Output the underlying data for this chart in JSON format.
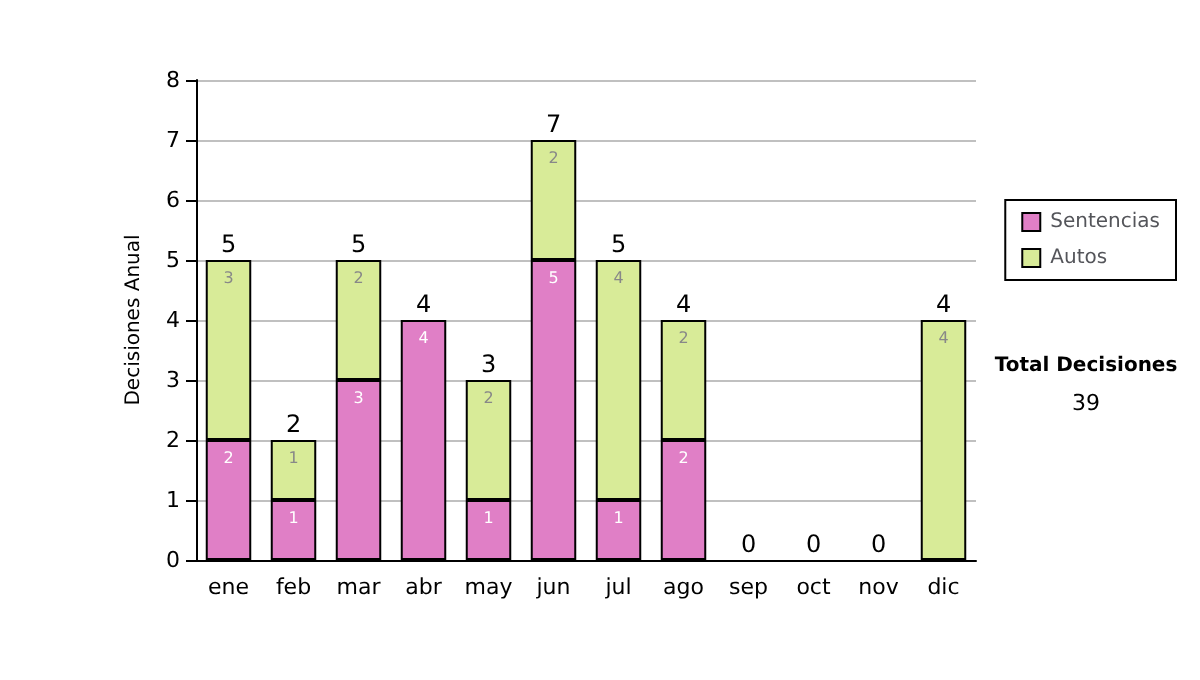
{
  "chart_data": {
    "type": "bar",
    "ylabel": "Decisiones Anual",
    "categories": [
      "ene",
      "feb",
      "mar",
      "abr",
      "may",
      "jun",
      "jul",
      "ago",
      "sep",
      "oct",
      "nov",
      "dic"
    ],
    "stacked": true,
    "series": [
      {
        "name": "Sentencias",
        "color": "#e07fc6",
        "values": [
          2,
          1,
          3,
          4,
          1,
          5,
          1,
          2,
          0,
          0,
          0,
          0
        ],
        "value_labels": [
          "2",
          "1",
          "3",
          "4",
          "1",
          "5",
          "1",
          "2",
          null,
          null,
          null,
          null
        ]
      },
      {
        "name": "Autos",
        "color": "#d8eb98",
        "values": [
          3,
          1,
          2,
          0,
          2,
          2,
          4,
          2,
          0,
          0,
          0,
          4
        ],
        "value_labels": [
          "3",
          "1",
          "2",
          null,
          "2",
          "2",
          "4",
          "2",
          null,
          null,
          null,
          "4"
        ]
      }
    ],
    "totals": [
      "5",
      "2",
      "5",
      "4",
      "3",
      "7",
      "5",
      "4",
      "0",
      "0",
      "0",
      "4"
    ],
    "ylim": [
      0,
      8
    ],
    "yticks": [
      0,
      1,
      2,
      3,
      4,
      5,
      6,
      7,
      8
    ],
    "grid": "y",
    "legend": "right",
    "annotations": [
      "Total Decisiones",
      "39"
    ]
  }
}
